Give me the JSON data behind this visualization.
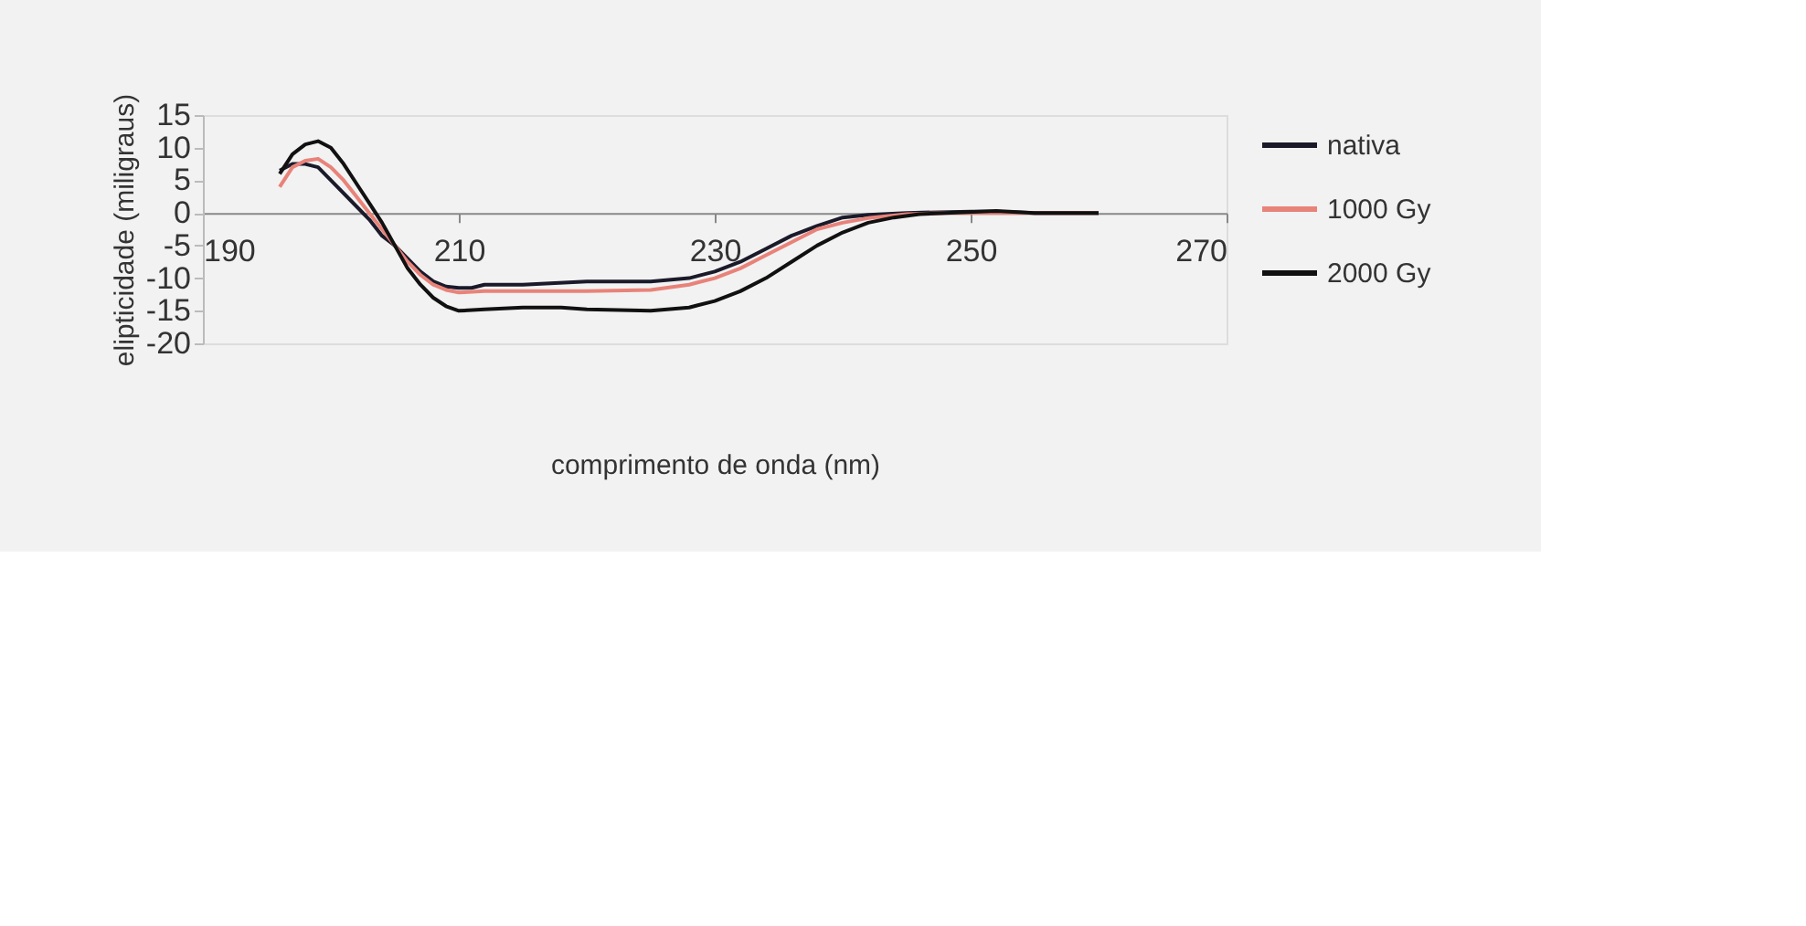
{
  "chart_data": {
    "type": "line",
    "xlabel": "comprimento de onda (nm)",
    "ylabel": "elipticidade (miligraus)",
    "xlim": [
      190,
      270
    ],
    "xticks": [
      190,
      210,
      230,
      250,
      270
    ],
    "ylim": [
      -20,
      15
    ],
    "yticks": [
      -20,
      -15,
      -10,
      -5,
      0,
      5,
      10,
      15
    ],
    "grid": false,
    "legend": "right",
    "marker": "none",
    "line_style": "solid",
    "series": [
      {
        "name": "nativa",
        "color": "#1a1a2a",
        "x": [
          196,
          197,
          198,
          199,
          200,
          202,
          203,
          204,
          205,
          206,
          207,
          208,
          209,
          210,
          211,
          212,
          215,
          220,
          225,
          228,
          230,
          232,
          234,
          236,
          238,
          240,
          242,
          245,
          250,
          252,
          255,
          260
        ],
        "values": [
          6.5,
          7.5,
          7.5,
          7,
          5,
          1,
          -1,
          -3.5,
          -5,
          -7,
          -9,
          -10.5,
          -11.3,
          -11.5,
          -11.5,
          -11,
          -11,
          -10.5,
          -10.5,
          -10,
          -9,
          -7.5,
          -5.5,
          -3.5,
          -2,
          -0.7,
          -0.3,
          0,
          0.2,
          0.2,
          0,
          0
        ]
      },
      {
        "name": "1000 Gy",
        "color": "#e8837a",
        "x": [
          196,
          197,
          198,
          199,
          200,
          201,
          202,
          203,
          204,
          205,
          206,
          207,
          208,
          209,
          210,
          212,
          215,
          220,
          225,
          228,
          230,
          232,
          234,
          236,
          238,
          240,
          242,
          245,
          248,
          255,
          260
        ],
        "values": [
          4,
          7,
          8,
          8.3,
          7,
          5,
          2.5,
          0,
          -2.5,
          -5,
          -7.5,
          -9.5,
          -11,
          -11.8,
          -12.2,
          -12,
          -12,
          -12,
          -11.8,
          -11,
          -10,
          -8.5,
          -6.5,
          -4.5,
          -2.5,
          -1.5,
          -0.8,
          -0.2,
          0,
          0,
          0
        ]
      },
      {
        "name": "2000 Gy",
        "color": "#111111",
        "x": [
          196,
          197,
          198,
          199,
          200,
          201,
          202,
          203,
          204,
          205,
          206,
          207,
          208,
          209,
          210,
          212,
          215,
          218,
          220,
          225,
          228,
          230,
          232,
          234,
          236,
          238,
          240,
          242,
          244,
          246,
          248,
          252,
          255,
          260
        ],
        "values": [
          6,
          9,
          10.5,
          11,
          10,
          7.5,
          4.5,
          1.5,
          -1.5,
          -5,
          -8.5,
          -11,
          -13,
          -14.3,
          -15,
          -14.8,
          -14.5,
          -14.5,
          -14.8,
          -15,
          -14.5,
          -13.5,
          -12,
          -10,
          -7.5,
          -5,
          -3,
          -1.5,
          -0.7,
          -0.2,
          0,
          0.3,
          0,
          0
        ]
      }
    ]
  }
}
